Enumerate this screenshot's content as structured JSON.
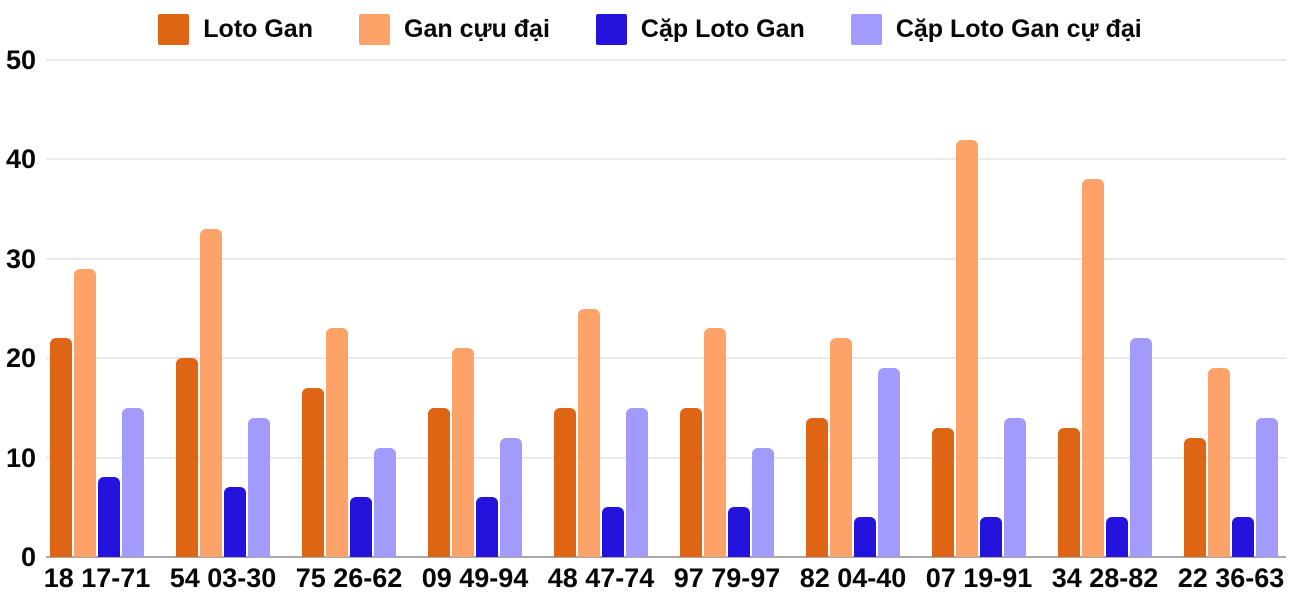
{
  "chart_data": {
    "type": "bar",
    "title": "",
    "xlabel": "",
    "ylabel": "",
    "ylim": [
      0,
      50
    ],
    "yticks": [
      0,
      10,
      20,
      30,
      40,
      50
    ],
    "grid": true,
    "legend_position": "top",
    "background_color": "#ffffff",
    "gridline_color": "#e9e9e9",
    "baseline_color": "#a9a9a9",
    "categories": [
      "18 17-71",
      "54 03-30",
      "75 26-62",
      "09 49-94",
      "48 47-74",
      "97 79-97",
      "82 04-40",
      "07 19-91",
      "34 28-82",
      "22 36-63"
    ],
    "series": [
      {
        "name": "Loto Gan",
        "color": "#de6513",
        "values": [
          22,
          20,
          17,
          15,
          15,
          15,
          14,
          13,
          13,
          12
        ]
      },
      {
        "name": "Gan cựu đại",
        "color": "#fda269",
        "values": [
          29,
          33,
          23,
          21,
          25,
          23,
          22,
          42,
          38,
          19
        ]
      },
      {
        "name": "Cặp Loto Gan",
        "color": "#2413dc",
        "values": [
          8,
          7,
          6,
          6,
          5,
          5,
          4,
          4,
          4,
          4
        ]
      },
      {
        "name": "Cặp Loto Gan cự đại",
        "color": "#a39bfb",
        "values": [
          15,
          14,
          11,
          12,
          15,
          11,
          19,
          14,
          22,
          14
        ]
      }
    ]
  }
}
